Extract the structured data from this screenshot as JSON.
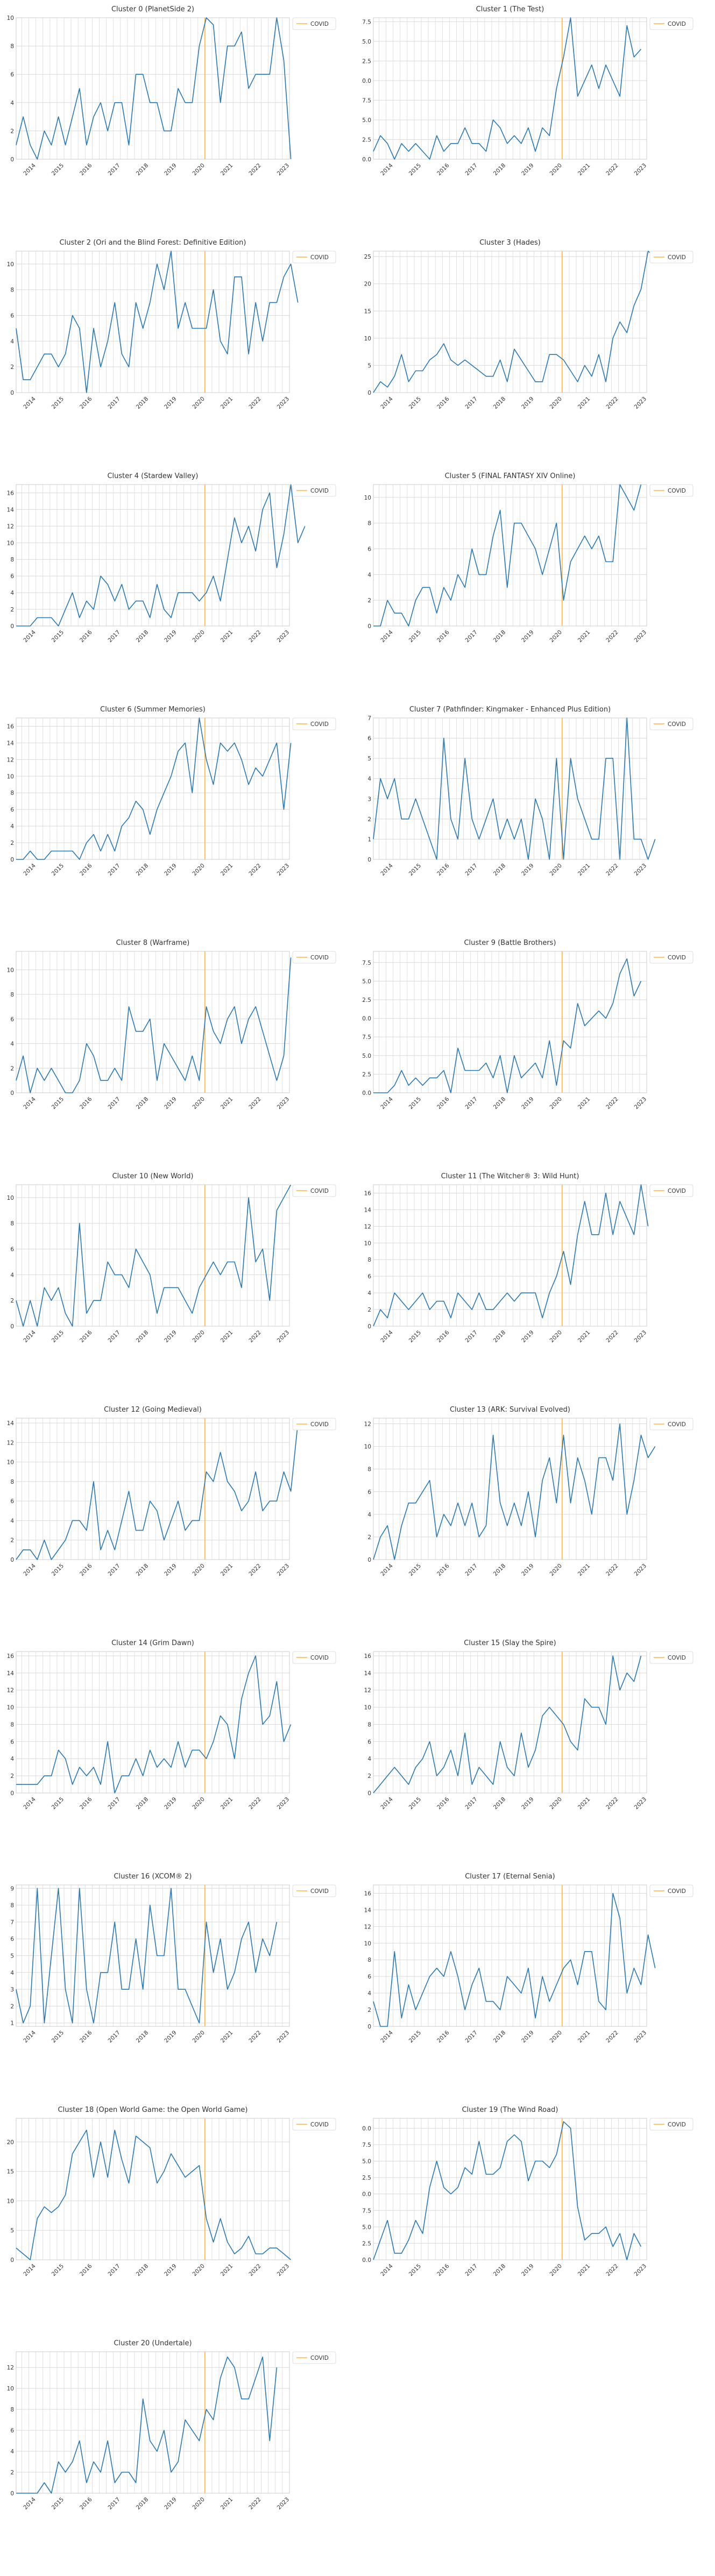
{
  "colors": {
    "line": "#2878b5",
    "covid": "#ffb347",
    "grid": "#d9d9d9",
    "axis": "#cccccc",
    "text": "#333333"
  },
  "x_ticks": [
    "2014",
    "2015",
    "2016",
    "2017",
    "2018",
    "2019",
    "2020",
    "2021",
    "2022",
    "2023"
  ],
  "legend_label": "COVID",
  "chart_data": [
    {
      "type": "line",
      "title": "Cluster 0 (PlanetSide 2)",
      "ylim": [
        0,
        10
      ],
      "yticks": [
        0,
        2,
        4,
        6,
        8,
        10
      ],
      "covid_x": 2020.0,
      "x_start": 2013.3,
      "x_step": 0.25,
      "values": [
        1,
        3,
        1,
        0,
        2,
        1,
        3,
        1,
        3,
        5,
        1,
        3,
        4,
        2,
        4,
        4,
        1,
        6,
        6,
        4,
        4,
        2,
        2,
        5,
        4,
        4,
        8,
        10,
        9.5,
        4,
        8,
        8,
        9,
        5,
        6,
        6,
        6,
        10,
        7,
        0
      ]
    },
    {
      "type": "line",
      "title": "Cluster 1 (The Test)",
      "ylim": [
        0,
        18
      ],
      "yticks": [
        0.0,
        2.5,
        5.0,
        7.5,
        10.0,
        12.5,
        15.0,
        17.5
      ],
      "covid_x": 2020.0,
      "x_start": 2013.3,
      "x_step": 0.25,
      "values": [
        1,
        3,
        2,
        0,
        2,
        1,
        2,
        1,
        0,
        3,
        1,
        2,
        2,
        4,
        2,
        2,
        1,
        5,
        4,
        2,
        3,
        2,
        4,
        1,
        4,
        3,
        9,
        13,
        18,
        8,
        10,
        12,
        9,
        12,
        10,
        8,
        17,
        13,
        14
      ]
    },
    {
      "type": "line",
      "title": "Cluster 2 (Ori and the Blind Forest: Definitive Edition)",
      "ylim": [
        0,
        11
      ],
      "yticks": [
        0,
        2,
        4,
        6,
        8,
        10
      ],
      "covid_x": 2020.0,
      "x_start": 2013.3,
      "x_step": 0.25,
      "values": [
        5,
        1,
        1,
        2,
        3,
        3,
        2,
        3,
        6,
        5,
        0,
        5,
        2,
        4,
        7,
        3,
        2,
        7,
        5,
        7,
        10,
        8,
        11,
        5,
        7,
        5,
        5,
        5,
        8,
        4,
        3,
        9,
        9,
        3,
        7,
        4,
        7,
        7,
        9,
        10,
        7
      ]
    },
    {
      "type": "line",
      "title": "Cluster 3 (Hades)",
      "ylim": [
        0,
        26
      ],
      "yticks": [
        0,
        5,
        10,
        15,
        20,
        25
      ],
      "covid_x": 2020.0,
      "x_start": 2013.3,
      "x_step": 0.25,
      "values": [
        0,
        2,
        1,
        3,
        7,
        2,
        4,
        4,
        6,
        7,
        9,
        6,
        5,
        6,
        5,
        4,
        3,
        3,
        6,
        2,
        8,
        6,
        4,
        2,
        2,
        7,
        7,
        6,
        4,
        2,
        5,
        3,
        7,
        2,
        10,
        13,
        11,
        16,
        19,
        26,
        25
      ]
    },
    {
      "type": "line",
      "title": "Cluster 4 (Stardew Valley)",
      "ylim": [
        0,
        17
      ],
      "yticks": [
        0,
        2,
        4,
        6,
        8,
        10,
        12,
        14,
        16
      ],
      "covid_x": 2020.0,
      "x_start": 2013.3,
      "x_step": 0.25,
      "values": [
        0,
        0,
        0,
        1,
        1,
        1,
        0,
        2,
        4,
        1,
        3,
        2,
        6,
        5,
        3,
        5,
        2,
        3,
        3,
        1,
        5,
        2,
        1,
        4,
        4,
        4,
        3,
        4,
        6,
        3,
        8,
        13,
        10,
        12,
        9,
        14,
        16,
        7,
        11,
        17,
        10,
        12
      ]
    },
    {
      "type": "line",
      "title": "Cluster 5 (FINAL FANTASY XIV Online)",
      "ylim": [
        0,
        11
      ],
      "yticks": [
        0,
        2,
        4,
        6,
        8,
        10
      ],
      "covid_x": 2020.0,
      "x_start": 2013.3,
      "x_step": 0.25,
      "values": [
        0,
        0,
        2,
        1,
        1,
        0,
        2,
        3,
        3,
        1,
        3,
        2,
        4,
        3,
        6,
        4,
        4,
        7,
        9,
        3,
        8,
        8,
        7,
        6,
        4,
        6,
        8,
        2,
        5,
        6,
        7,
        6,
        7,
        5,
        5,
        11,
        10,
        9,
        11
      ]
    },
    {
      "type": "line",
      "title": "Cluster 6 (Summer Memories)",
      "ylim": [
        0,
        17
      ],
      "yticks": [
        0,
        2,
        4,
        6,
        8,
        10,
        12,
        14,
        16
      ],
      "covid_x": 2020.0,
      "x_start": 2013.3,
      "x_step": 0.25,
      "values": [
        0,
        0,
        1,
        0,
        0,
        1,
        1,
        1,
        1,
        0,
        2,
        3,
        1,
        3,
        1,
        4,
        5,
        7,
        6,
        3,
        6,
        8,
        10,
        13,
        14,
        8,
        17,
        12,
        9,
        14,
        13,
        14,
        12,
        9,
        11,
        10,
        12,
        14,
        6,
        14
      ]
    },
    {
      "type": "line",
      "title": "Cluster 7 (Pathfinder: Kingmaker - Enhanced Plus Edition)",
      "ylim": [
        0,
        7
      ],
      "yticks": [
        0,
        1,
        2,
        3,
        4,
        5,
        6,
        7
      ],
      "covid_x": 2020.0,
      "x_start": 2013.3,
      "x_step": 0.25,
      "values": [
        1,
        4,
        3,
        4,
        2,
        2,
        3,
        2,
        1,
        0,
        6,
        2,
        1,
        5,
        2,
        1,
        2,
        3,
        1,
        2,
        1,
        2,
        0,
        3,
        2,
        0,
        5,
        0,
        5,
        3,
        2,
        1,
        1,
        5,
        5,
        0,
        7,
        1,
        1,
        0,
        1
      ]
    },
    {
      "type": "line",
      "title": "Cluster 8 (Warframe)",
      "ylim": [
        0,
        11.5
      ],
      "yticks": [
        0,
        2,
        4,
        6,
        8,
        10
      ],
      "covid_x": 2020.0,
      "x_start": 2013.3,
      "x_step": 0.25,
      "values": [
        1,
        3,
        0,
        2,
        1,
        2,
        1,
        0,
        0,
        1,
        4,
        3,
        1,
        1,
        2,
        1,
        7,
        5,
        5,
        6,
        1,
        4,
        3,
        2,
        1,
        3,
        1,
        7,
        5,
        4,
        6,
        7,
        4,
        6,
        7,
        5,
        3,
        1,
        3,
        11
      ]
    },
    {
      "type": "line",
      "title": "Cluster 9 (Battle Brothers)",
      "ylim": [
        0,
        19
      ],
      "yticks": [
        0.0,
        2.5,
        5.0,
        7.5,
        10.0,
        12.5,
        15.0,
        17.5
      ],
      "covid_x": 2020.0,
      "x_start": 2013.3,
      "x_step": 0.25,
      "values": [
        0,
        0,
        0,
        1,
        3,
        1,
        2,
        1,
        2,
        2,
        3,
        0,
        6,
        3,
        3,
        3,
        4,
        2,
        5,
        0,
        5,
        2,
        3,
        4,
        2,
        7,
        1,
        7,
        6,
        12,
        9,
        10,
        11,
        10,
        12,
        16,
        18,
        13,
        15
      ]
    },
    {
      "type": "line",
      "title": "Cluster 10 (New World)",
      "ylim": [
        0,
        11
      ],
      "yticks": [
        0,
        2,
        4,
        6,
        8,
        10
      ],
      "covid_x": 2020.0,
      "x_start": 2013.3,
      "x_step": 0.25,
      "values": [
        2,
        0,
        2,
        0,
        3,
        2,
        3,
        1,
        0,
        8,
        1,
        2,
        2,
        5,
        4,
        4,
        3,
        6,
        5,
        4,
        1,
        3,
        3,
        3,
        2,
        1,
        3,
        4,
        5,
        4,
        5,
        5,
        3,
        10,
        5,
        6,
        2,
        9,
        10,
        11
      ]
    },
    {
      "type": "line",
      "title": "Cluster 11 (The Witcher® 3: Wild Hunt)",
      "ylim": [
        0,
        17
      ],
      "yticks": [
        0,
        2,
        4,
        6,
        8,
        10,
        12,
        14,
        16
      ],
      "covid_x": 2020.0,
      "x_start": 2013.3,
      "x_step": 0.25,
      "values": [
        0,
        2,
        1,
        4,
        3,
        2,
        3,
        4,
        2,
        3,
        3,
        1,
        4,
        3,
        2,
        4,
        2,
        2,
        3,
        4,
        3,
        4,
        4,
        4,
        1,
        4,
        6,
        9,
        5,
        11,
        15,
        11,
        11,
        16,
        11,
        15,
        13,
        11,
        17,
        12
      ]
    },
    {
      "type": "line",
      "title": "Cluster 12 (Going Medieval)",
      "ylim": [
        0,
        14.5
      ],
      "yticks": [
        0,
        2,
        4,
        6,
        8,
        10,
        12,
        14
      ],
      "covid_x": 2020.0,
      "x_start": 2013.3,
      "x_step": 0.25,
      "values": [
        0,
        1,
        1,
        0,
        2,
        0,
        1,
        2,
        4,
        4,
        3,
        8,
        1,
        3,
        1,
        4,
        7,
        3,
        3,
        6,
        5,
        2,
        4,
        6,
        3,
        4,
        4,
        9,
        8,
        11,
        8,
        7,
        5,
        6,
        9,
        5,
        6,
        6,
        9,
        7,
        14
      ]
    },
    {
      "type": "line",
      "title": "Cluster 13 (ARK: Survival Evolved)",
      "ylim": [
        0,
        12.5
      ],
      "yticks": [
        0,
        2,
        4,
        6,
        8,
        10,
        12
      ],
      "covid_x": 2020.0,
      "x_start": 2013.3,
      "x_step": 0.25,
      "values": [
        0,
        2,
        3,
        0,
        3,
        5,
        5,
        6,
        7,
        2,
        4,
        3,
        5,
        3,
        5,
        2,
        3,
        11,
        5,
        3,
        5,
        3,
        6,
        2,
        7,
        9,
        5,
        11,
        5,
        9,
        7,
        4,
        9,
        9,
        7,
        12,
        4,
        7,
        11,
        9,
        10
      ]
    },
    {
      "type": "line",
      "title": "Cluster 14 (Grim Dawn)",
      "ylim": [
        0,
        16.5
      ],
      "yticks": [
        0,
        2,
        4,
        6,
        8,
        10,
        12,
        14,
        16
      ],
      "covid_x": 2020.0,
      "x_start": 2013.3,
      "x_step": 0.25,
      "values": [
        1,
        1,
        1,
        1,
        2,
        2,
        5,
        4,
        1,
        3,
        2,
        3,
        1,
        6,
        0,
        2,
        2,
        4,
        2,
        5,
        3,
        4,
        3,
        6,
        3,
        5,
        5,
        4,
        6,
        9,
        8,
        4,
        11,
        14,
        16,
        8,
        9,
        13,
        6,
        8
      ]
    },
    {
      "type": "line",
      "title": "Cluster 15 (Slay the Spire)",
      "ylim": [
        0,
        16.5
      ],
      "yticks": [
        0,
        2,
        4,
        6,
        8,
        10,
        12,
        14,
        16
      ],
      "covid_x": 2020.0,
      "x_start": 2013.3,
      "x_step": 0.25,
      "values": [
        0,
        1,
        2,
        3,
        2,
        1,
        3,
        4,
        6,
        2,
        3,
        5,
        2,
        7,
        1,
        3,
        2,
        1,
        6,
        3,
        2,
        7,
        3,
        5,
        9,
        10,
        9,
        8,
        6,
        5,
        11,
        10,
        10,
        8,
        16,
        12,
        14,
        13,
        16
      ]
    },
    {
      "type": "line",
      "title": "Cluster 16 (XCOM® 2)",
      "ylim": [
        0.8,
        9.2
      ],
      "yticks": [
        1,
        2,
        3,
        4,
        5,
        6,
        7,
        8,
        9
      ],
      "covid_x": 2020.0,
      "x_start": 2013.3,
      "x_step": 0.25,
      "values": [
        3,
        1,
        2,
        9,
        1,
        5,
        9,
        3,
        1,
        9,
        3,
        1,
        4,
        4,
        7,
        3,
        3,
        6,
        3,
        8,
        5,
        5,
        9,
        3,
        3,
        2,
        1,
        7,
        4,
        6,
        3,
        4,
        6,
        7,
        4,
        6,
        5,
        7
      ]
    },
    {
      "type": "line",
      "title": "Cluster 17 (Eternal Senia)",
      "ylim": [
        0,
        17
      ],
      "yticks": [
        0,
        2,
        4,
        6,
        8,
        10,
        12,
        14,
        16
      ],
      "covid_x": 2020.0,
      "x_start": 2013.3,
      "x_step": 0.25,
      "values": [
        3,
        0,
        0,
        9,
        1,
        5,
        2,
        4,
        6,
        7,
        6,
        9,
        6,
        2,
        5,
        7,
        3,
        3,
        2,
        6,
        5,
        4,
        7,
        1,
        6,
        3,
        5,
        7,
        8,
        5,
        9,
        9,
        3,
        2,
        16,
        13,
        4,
        7,
        5,
        11,
        7
      ]
    },
    {
      "type": "line",
      "title": "Cluster 18 (Open World Game: the Open World Game)",
      "ylim": [
        0,
        24
      ],
      "yticks": [
        0,
        5,
        10,
        15,
        20
      ],
      "covid_x": 2020.0,
      "x_start": 2013.3,
      "x_step": 0.25,
      "values": [
        2,
        1,
        0,
        7,
        9,
        8,
        9,
        11,
        18,
        20,
        22,
        14,
        20,
        14,
        22,
        17,
        13,
        21,
        20,
        19,
        13,
        15,
        18,
        16,
        14,
        15,
        16,
        7,
        3,
        7,
        3,
        1,
        2,
        4,
        1,
        1,
        2,
        2,
        1,
        0
      ]
    },
    {
      "type": "line",
      "title": "Cluster 19 (The Wind Road)",
      "ylim": [
        0,
        21.5
      ],
      "yticks": [
        0.0,
        2.5,
        5.0,
        7.5,
        10.0,
        12.5,
        15.0,
        17.5,
        20.0
      ],
      "covid_x": 2020.0,
      "x_start": 2013.3,
      "x_step": 0.25,
      "values": [
        0,
        3,
        6,
        1,
        1,
        3,
        6,
        4,
        11,
        15,
        11,
        10,
        11,
        14,
        13,
        18,
        13,
        13,
        14,
        18,
        19,
        18,
        12,
        15,
        15,
        14,
        16,
        21,
        20,
        8,
        3,
        4,
        4,
        5,
        2,
        4,
        0,
        4,
        2
      ]
    },
    {
      "type": "line",
      "title": "Cluster 20 (Undertale)",
      "ylim": [
        0,
        13.5
      ],
      "yticks": [
        0,
        2,
        4,
        6,
        8,
        10,
        12
      ],
      "covid_x": 2020.0,
      "x_start": 2013.3,
      "x_step": 0.25,
      "values": [
        0,
        0,
        0,
        0,
        1,
        0,
        3,
        2,
        3,
        5,
        1,
        3,
        2,
        5,
        1,
        2,
        2,
        1,
        9,
        5,
        4,
        6,
        2,
        3,
        7,
        6,
        5,
        8,
        7,
        11,
        13,
        12,
        9,
        9,
        11,
        13,
        5,
        12
      ]
    }
  ]
}
